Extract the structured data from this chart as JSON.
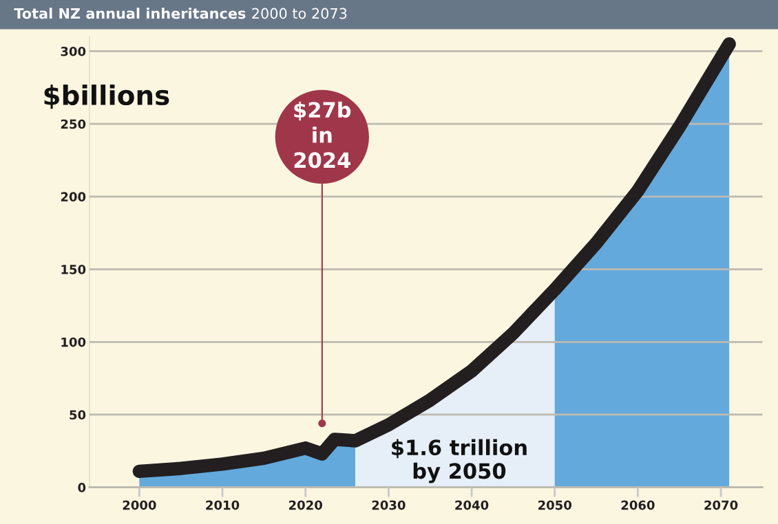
{
  "chart_data": {
    "type": "line",
    "title": "Total NZ annual inheritances",
    "subtitle": "2000 to 2073",
    "ylabel": "$billions",
    "series": [
      {
        "type": "area",
        "color": "#63a9dc",
        "x": [
          2000,
          2005,
          2010,
          2015,
          2020,
          2022,
          2023.5,
          2026
        ],
        "values": [
          11,
          13,
          16,
          20,
          27,
          23,
          33,
          32
        ]
      },
      {
        "type": "area",
        "color": "#e6eff8",
        "x": [
          2026,
          2030,
          2035,
          2040,
          2045,
          2050
        ],
        "values": [
          32,
          43,
          60,
          80,
          106,
          136
        ]
      },
      {
        "type": "area",
        "color": "#63a9dc",
        "x": [
          2050,
          2055,
          2060,
          2065,
          2071
        ],
        "values": [
          136,
          168,
          204,
          248,
          305
        ]
      },
      {
        "color": "#231f20",
        "x": [
          2000,
          2005,
          2010,
          2015,
          2020,
          2022,
          2023.5,
          2026,
          2030,
          2035,
          2040,
          2045,
          2050,
          2055,
          2060,
          2065,
          2071
        ],
        "values": [
          11,
          13,
          16,
          20,
          27,
          23,
          33,
          32,
          43,
          60,
          80,
          106,
          136,
          168,
          204,
          248,
          305
        ]
      }
    ],
    "annotations": [
      {
        "text": "$27b\nin\n2024",
        "x": 2022,
        "y": 44
      },
      "$1.6 trillion\nby 2050"
    ],
    "xlim": [
      1994,
      2075
    ],
    "ylim": [
      0,
      310
    ],
    "xticks": [
      2000,
      2010,
      2020,
      2030,
      2040,
      2050,
      2060,
      2070
    ],
    "yticks": [
      0,
      50,
      100,
      150,
      200,
      250,
      300
    ],
    "grid": "y",
    "legend": false
  }
}
